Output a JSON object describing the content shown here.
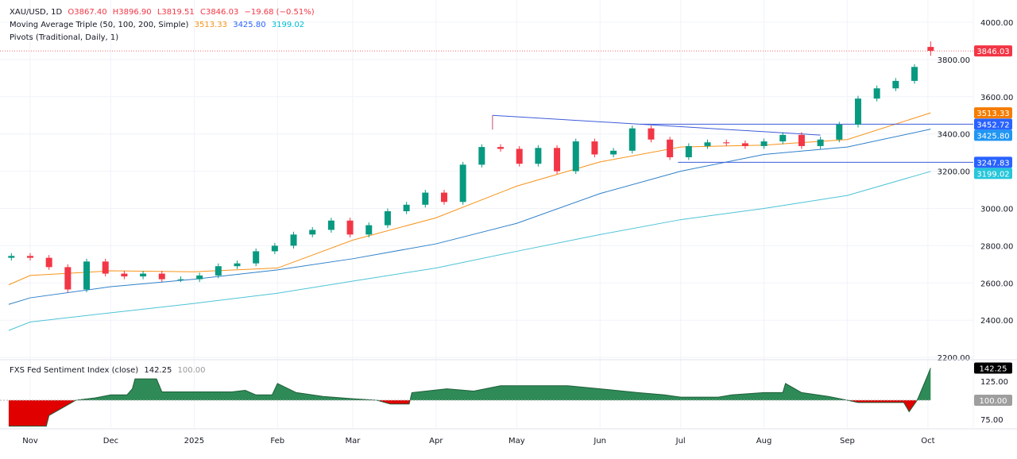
{
  "header": {
    "symbol": "XAU/USD, 1D",
    "open": "O3867.40",
    "high": "H3896.90",
    "low": "L3819.51",
    "close": "C3846.03",
    "change": "−19.68 (−0.51%)",
    "ma_label": "Moving Average Triple (50, 100, 200, Simple)",
    "ma50": "3513.33",
    "ma100": "3425.80",
    "ma200": "3199.02",
    "pivots_label": "Pivots (Traditional, Daily, 1)"
  },
  "sub_header": {
    "label": "FXS Fed Sentiment Index (close)",
    "value": "142.25",
    "baseline": "100.00"
  },
  "colors": {
    "up": "#089981",
    "down": "#f23645",
    "ma50": "#f7931a",
    "ma100": "#2f80c9",
    "ma200": "#4dc3d6",
    "pivot": "#3d5bd9",
    "sent_up": "#2e8b57",
    "sent_down": "#e00000"
  },
  "chart_data": [
    {
      "type": "candlestick",
      "title": "XAU/USD, 1D",
      "ylim": [
        2200,
        4050
      ],
      "y_ticks": [
        "4000.00",
        "3800.00",
        "3600.00",
        "3400.00",
        "3200.00",
        "3000.00",
        "2800.00",
        "2600.00",
        "2400.00",
        "2200.00"
      ],
      "x_ticks": [
        "Nov",
        "Dec",
        "2025",
        "Feb",
        "Mar",
        "Apr",
        "May",
        "Jun",
        "Jul",
        "Aug",
        "Sep",
        "Oct"
      ],
      "x_tick_dates": [
        "2024-11-01",
        "2024-12-01",
        "2025-01-01",
        "2025-02-01",
        "2025-03-01",
        "2025-04-01",
        "2025-05-01",
        "2025-06-01",
        "2025-07-01",
        "2025-08-01",
        "2025-09-01",
        "2025-10-01"
      ],
      "closes": {
        "dates": [
          "2024-10-25",
          "2024-11-01",
          "2024-11-08",
          "2024-11-15",
          "2024-11-22",
          "2024-11-29",
          "2024-12-06",
          "2024-12-13",
          "2024-12-20",
          "2024-12-27",
          "2025-01-03",
          "2025-01-10",
          "2025-01-17",
          "2025-01-24",
          "2025-01-31",
          "2025-02-07",
          "2025-02-14",
          "2025-02-21",
          "2025-02-28",
          "2025-03-07",
          "2025-03-14",
          "2025-03-21",
          "2025-03-28",
          "2025-04-04",
          "2025-04-11",
          "2025-04-18",
          "2025-04-25",
          "2025-05-02",
          "2025-05-09",
          "2025-05-16",
          "2025-05-23",
          "2025-05-30",
          "2025-06-06",
          "2025-06-13",
          "2025-06-20",
          "2025-06-27",
          "2025-07-04",
          "2025-07-11",
          "2025-07-18",
          "2025-07-25",
          "2025-08-01",
          "2025-08-08",
          "2025-08-15",
          "2025-08-22",
          "2025-08-29",
          "2025-09-05",
          "2025-09-12",
          "2025-09-19",
          "2025-09-26",
          "2025-10-02"
        ],
        "values": [
          2745,
          2735,
          2685,
          2565,
          2715,
          2650,
          2635,
          2650,
          2620,
          2620,
          2640,
          2690,
          2705,
          2770,
          2800,
          2860,
          2885,
          2935,
          2860,
          2910,
          2985,
          3020,
          3085,
          3035,
          3235,
          3330,
          3320,
          3240,
          3325,
          3200,
          3360,
          3290,
          3310,
          3430,
          3370,
          3275,
          3335,
          3355,
          3350,
          3335,
          3360,
          3395,
          3335,
          3370,
          3450,
          3590,
          3645,
          3685,
          3760,
          3846.03
        ]
      },
      "last_candle": {
        "open": 3867.4,
        "high": 3896.9,
        "low": 3819.51,
        "close": 3846.03
      },
      "series": [
        {
          "name": "MA 50",
          "dates": [
            "2024-10-24",
            "2024-11-01",
            "2024-12-01",
            "2025-01-01",
            "2025-02-01",
            "2025-03-01",
            "2025-04-01",
            "2025-05-01",
            "2025-06-01",
            "2025-07-01",
            "2025-08-01",
            "2025-09-01",
            "2025-10-02"
          ],
          "values": [
            2590,
            2640,
            2665,
            2660,
            2680,
            2830,
            2950,
            3120,
            3250,
            3330,
            3340,
            3370,
            3513.33
          ]
        },
        {
          "name": "MA 100",
          "dates": [
            "2024-10-24",
            "2024-11-01",
            "2024-12-01",
            "2025-01-01",
            "2025-02-01",
            "2025-03-01",
            "2025-04-01",
            "2025-05-01",
            "2025-06-01",
            "2025-07-01",
            "2025-08-01",
            "2025-09-01",
            "2025-10-02"
          ],
          "values": [
            2485,
            2520,
            2580,
            2620,
            2670,
            2730,
            2810,
            2920,
            3080,
            3200,
            3290,
            3330,
            3425.8
          ]
        },
        {
          "name": "MA 200",
          "dates": [
            "2024-10-24",
            "2024-11-01",
            "2024-12-01",
            "2025-01-01",
            "2025-02-01",
            "2025-03-01",
            "2025-04-01",
            "2025-05-01",
            "2025-06-01",
            "2025-07-01",
            "2025-08-01",
            "2025-09-01",
            "2025-10-02"
          ],
          "values": [
            2345,
            2390,
            2440,
            2490,
            2545,
            2610,
            2680,
            2770,
            2860,
            2940,
            3000,
            3070,
            3199.02
          ]
        }
      ],
      "pivot_lines": [
        {
          "label": "3452.72",
          "value": 3452.72,
          "from": "2025-06-16"
        },
        {
          "label": "3247.83",
          "value": 3247.83,
          "from": "2025-06-30"
        }
      ],
      "trendline": {
        "from": {
          "date": "2025-04-22",
          "value": 3500
        },
        "to": {
          "date": "2025-08-22",
          "value": 3394
        }
      },
      "price_tags": [
        {
          "label": "3846.03",
          "value": 3846.03,
          "color": "#f23645"
        },
        {
          "label": "3513.33",
          "value": 3513.33,
          "color": "#f57c00"
        },
        {
          "label": "3452.72",
          "value": 3452.72,
          "color": "#2962ff"
        },
        {
          "label": "3425.80",
          "value": 3425.8,
          "color": "#2196f3"
        },
        {
          "label": "3247.83",
          "value": 3247.83,
          "color": "#2962ff"
        },
        {
          "label": "3199.02",
          "value": 3199.02,
          "color": "#26c6da"
        }
      ]
    },
    {
      "type": "area",
      "title": "FXS Fed Sentiment Index (close)",
      "baseline": 100,
      "ylim": [
        60,
        150
      ],
      "y_ticks": [
        "125.00",
        "75.00"
      ],
      "tags": [
        {
          "label": "142.25",
          "value": 142.25,
          "color": "#000000"
        },
        {
          "label": "100.00",
          "value": 100,
          "color": "#9e9e9e"
        }
      ],
      "dates": [
        "2024-10-24",
        "2024-11-07",
        "2024-11-08",
        "2024-11-18",
        "2024-11-25",
        "2024-12-01",
        "2024-12-07",
        "2024-12-09",
        "2024-12-10",
        "2024-12-18",
        "2024-12-20",
        "2025-01-15",
        "2025-01-20",
        "2025-01-24",
        "2025-01-30",
        "2025-02-01",
        "2025-02-08",
        "2025-02-18",
        "2025-03-01",
        "2025-03-10",
        "2025-03-15",
        "2025-03-22",
        "2025-03-23",
        "2025-04-05",
        "2025-04-15",
        "2025-04-25",
        "2025-05-20",
        "2025-06-01",
        "2025-06-15",
        "2025-06-25",
        "2025-07-01",
        "2025-07-15",
        "2025-07-20",
        "2025-08-01",
        "2025-08-08",
        "2025-08-09",
        "2025-08-15",
        "2025-08-25",
        "2025-09-01",
        "2025-09-05",
        "2025-09-22",
        "2025-09-24",
        "2025-09-27",
        "2025-09-30",
        "2025-10-02"
      ],
      "values": [
        66,
        66,
        80,
        100,
        103,
        107,
        107,
        115,
        128,
        128,
        111,
        111,
        113,
        107,
        107,
        122,
        110,
        105,
        102,
        100,
        95,
        95,
        110,
        115,
        112,
        119,
        119,
        115,
        110,
        107,
        104,
        104,
        107,
        110,
        110,
        122,
        110,
        105,
        100,
        97,
        97,
        85,
        100,
        125,
        142.25
      ]
    }
  ]
}
